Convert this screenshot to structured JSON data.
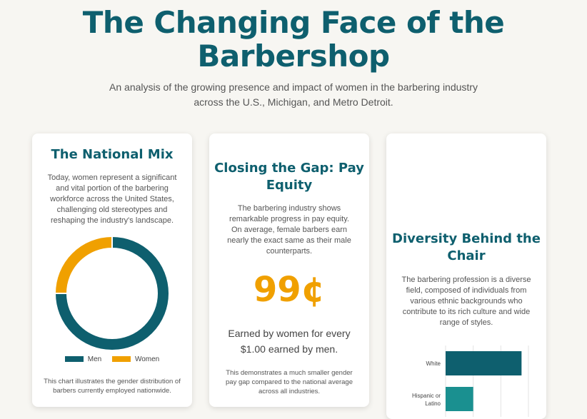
{
  "header": {
    "title_line1": "The Changing Face of the",
    "title_line2": "Barbershop",
    "subtitle": "An analysis of the growing presence and impact of women in the barbering industry across the U.S., Michigan, and Metro Detroit."
  },
  "colors": {
    "teal": "#0e5f6e",
    "orange": "#f0a000",
    "teal_light": "#1a9090"
  },
  "card_national": {
    "title": "The National Mix",
    "body": "Today, women represent a significant and vital portion of the barbering workforce across the United States, challenging old stereotypes and reshaping the industry's landscape.",
    "legend_men": "Men",
    "legend_women": "Women",
    "caption": "This chart illustrates the gender distribution of barbers currently employed nationwide."
  },
  "card_pay": {
    "title_line1": "Closing the Gap: Pay",
    "title_line2": "Equity",
    "body": "The barbering industry shows remarkable progress in pay equity. On average, female barbers earn nearly the exact same as their male counterparts.",
    "stat": "99¢",
    "stat_caption_line1": "Earned by women for every",
    "stat_caption_line2": "$1.00 earned by men.",
    "note": "This demonstrates a much smaller gender pay gap compared to the national average across all industries."
  },
  "card_diversity": {
    "title_line1": "Diversity Behind the",
    "title_line2": "Chair",
    "body": "The barbering profession is a diverse field, composed of individuals from various ethnic backgrounds who contribute to its rich culture and wide range of styles."
  },
  "chart_data": [
    {
      "type": "pie",
      "donut": true,
      "categories": [
        "Men",
        "Women"
      ],
      "values": [
        75,
        25
      ],
      "colors": [
        "#0e5f6e",
        "#f0a000"
      ],
      "legend": "bottom"
    },
    {
      "type": "bar",
      "orientation": "horizontal",
      "categories": [
        "White",
        "Hispanic or Latino"
      ],
      "values": [
        55,
        20
      ],
      "xlim": [
        0,
        60
      ],
      "grid": true,
      "colors": [
        "#0e5f6e",
        "#1a9090"
      ]
    }
  ]
}
